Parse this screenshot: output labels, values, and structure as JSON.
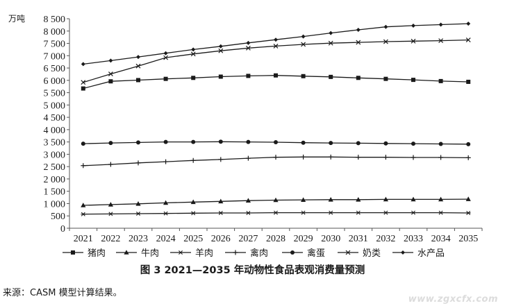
{
  "chart_data": {
    "type": "line",
    "title": "",
    "unit_label": "万吨",
    "ylim": [
      0,
      8500
    ],
    "yticks": [
      "0",
      "500",
      "1 000",
      "1 500",
      "2 000",
      "2 500",
      "3 000",
      "3 500",
      "4 000",
      "4 500",
      "5 000",
      "5 500",
      "6 000",
      "6 500",
      "7 000",
      "7 500",
      "8 000",
      "8 500"
    ],
    "x": [
      "2021",
      "2022",
      "2023",
      "2024",
      "2025",
      "2026",
      "2027",
      "2028",
      "2029",
      "2030",
      "2031",
      "2032",
      "2033",
      "2034",
      "2035"
    ],
    "legend_position": "bottom",
    "series": [
      {
        "name": "猪肉",
        "marker": "square",
        "values": [
          5670,
          5960,
          6010,
          6060,
          6100,
          6150,
          6180,
          6200,
          6170,
          6140,
          6100,
          6060,
          6020,
          5970,
          5940
        ]
      },
      {
        "name": "牛肉",
        "marker": "triangle",
        "values": [
          930,
          960,
          990,
          1030,
          1060,
          1090,
          1120,
          1140,
          1150,
          1160,
          1160,
          1170,
          1170,
          1170,
          1180
        ]
      },
      {
        "name": "羊肉",
        "marker": "star",
        "values": [
          570,
          580,
          590,
          600,
          610,
          620,
          620,
          630,
          630,
          630,
          630,
          630,
          630,
          630,
          620
        ]
      },
      {
        "name": "禽肉",
        "marker": "plus",
        "values": [
          2540,
          2590,
          2650,
          2700,
          2750,
          2790,
          2840,
          2880,
          2890,
          2890,
          2880,
          2880,
          2870,
          2870,
          2860
        ]
      },
      {
        "name": "禽蛋",
        "marker": "circle",
        "values": [
          3430,
          3460,
          3480,
          3500,
          3500,
          3510,
          3500,
          3490,
          3470,
          3460,
          3450,
          3440,
          3430,
          3420,
          3410
        ]
      },
      {
        "name": "奶类",
        "marker": "x",
        "values": [
          5920,
          6260,
          6580,
          6920,
          7070,
          7200,
          7310,
          7390,
          7460,
          7510,
          7540,
          7570,
          7590,
          7610,
          7640
        ]
      },
      {
        "name": "水产品",
        "marker": "diamond",
        "values": [
          6660,
          6800,
          6950,
          7100,
          7250,
          7380,
          7520,
          7650,
          7780,
          7920,
          8050,
          8170,
          8220,
          8260,
          8300
        ]
      }
    ]
  },
  "caption": "图 3   2021—2035 年动物性食品表观消费量预测",
  "source_note": "来源：CASM 模型计算结果。",
  "watermark": "www.zgxcfx.com"
}
